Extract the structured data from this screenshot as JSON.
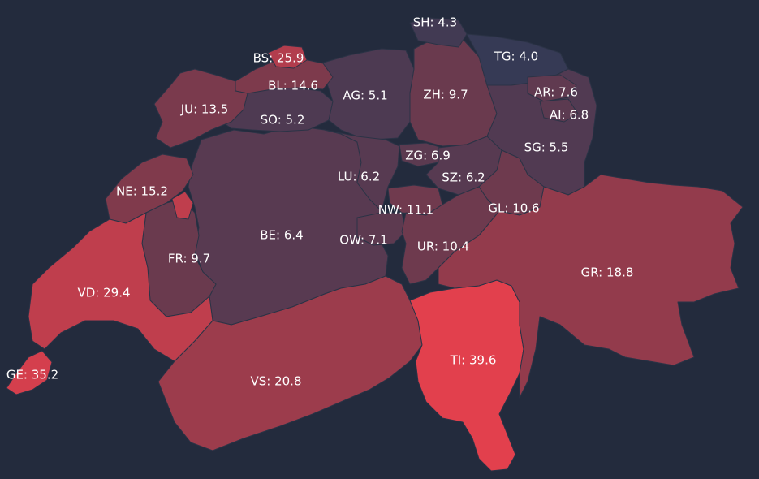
{
  "map": {
    "scale": {
      "min": 4.0,
      "max": 39.6,
      "color_low": "#363a55",
      "color_mid": "#7e3a4c",
      "color_high": "#e2404d"
    },
    "cantons": [
      {
        "code": "SH",
        "value": 4.3,
        "label": "SH: 4.3"
      },
      {
        "code": "TG",
        "value": 4.0,
        "label": "TG: 4.0"
      },
      {
        "code": "BS",
        "value": 25.9,
        "label": "BS: 25.9"
      },
      {
        "code": "BL",
        "value": 14.6,
        "label": "BL: 14.6"
      },
      {
        "code": "AG",
        "value": 5.1,
        "label": "AG: 5.1"
      },
      {
        "code": "ZH",
        "value": 9.7,
        "label": "ZH: 9.7"
      },
      {
        "code": "AR",
        "value": 7.6,
        "label": "AR: 7.6"
      },
      {
        "code": "AI",
        "value": 6.8,
        "label": "AI: 6.8"
      },
      {
        "code": "JU",
        "value": 13.5,
        "label": "JU: 13.5"
      },
      {
        "code": "SO",
        "value": 5.2,
        "label": "SO: 5.2"
      },
      {
        "code": "SG",
        "value": 5.5,
        "label": "SG: 5.5"
      },
      {
        "code": "ZG",
        "value": 6.9,
        "label": "ZG: 6.9"
      },
      {
        "code": "LU",
        "value": 6.2,
        "label": "LU: 6.2"
      },
      {
        "code": "SZ",
        "value": 6.2,
        "label": "SZ: 6.2"
      },
      {
        "code": "NE",
        "value": 15.2,
        "label": "NE: 15.2"
      },
      {
        "code": "NW",
        "value": 11.1,
        "label": "NW: 11.1"
      },
      {
        "code": "GL",
        "value": 10.6,
        "label": "GL: 10.6"
      },
      {
        "code": "BE",
        "value": 6.4,
        "label": "BE: 6.4"
      },
      {
        "code": "OW",
        "value": 7.1,
        "label": "OW: 7.1"
      },
      {
        "code": "UR",
        "value": 10.4,
        "label": "UR: 10.4"
      },
      {
        "code": "FR",
        "value": 9.7,
        "label": "FR: 9.7"
      },
      {
        "code": "GR",
        "value": 18.8,
        "label": "GR: 18.8"
      },
      {
        "code": "VD",
        "value": 29.4,
        "label": "VD: 29.4"
      },
      {
        "code": "TI",
        "value": 39.6,
        "label": "TI: 39.6"
      },
      {
        "code": "GE",
        "value": 35.2,
        "label": "GE: 35.2"
      },
      {
        "code": "VS",
        "value": 20.8,
        "label": "VS: 20.8"
      }
    ]
  }
}
